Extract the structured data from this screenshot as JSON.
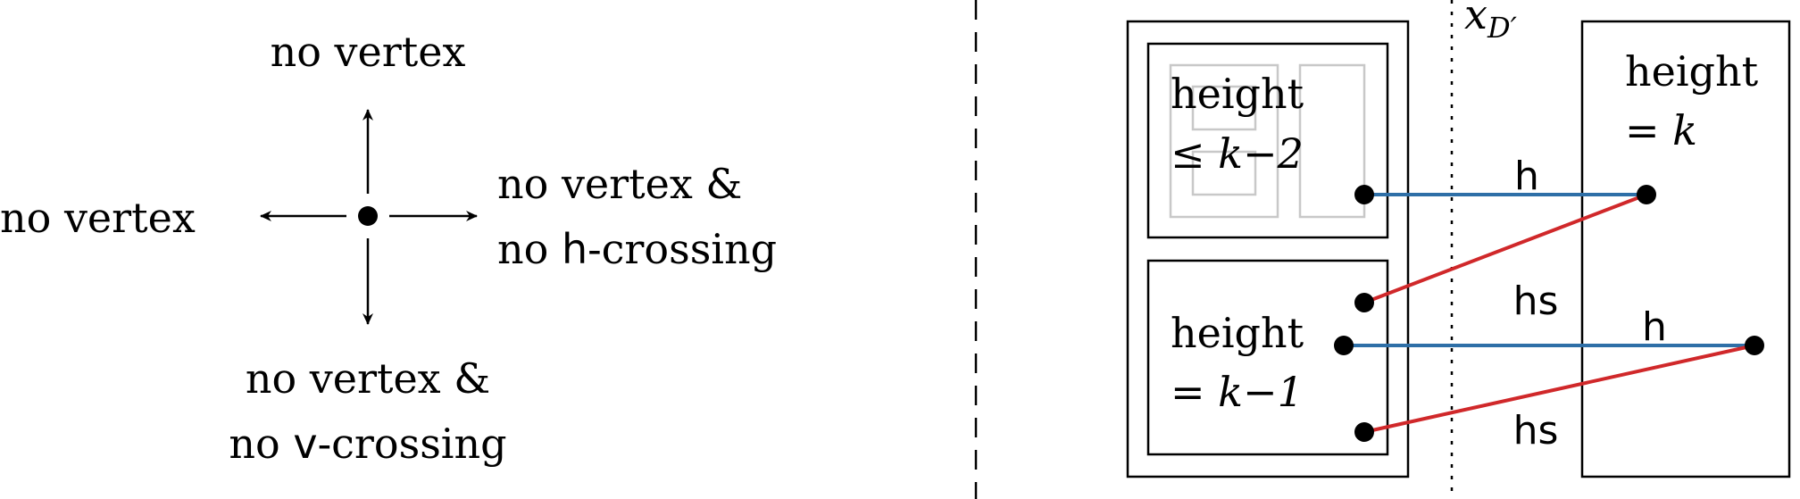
{
  "compass": {
    "up": "no vertex",
    "left": "no vertex",
    "right_line1": "no vertex &",
    "right_line2_prefix": "no ",
    "right_line2_code": "h",
    "right_line2_suffix": "-crossing",
    "down_line1": "no vertex &",
    "down_line2_prefix": "no ",
    "down_line2_code": "v",
    "down_line2_suffix": "-crossing"
  },
  "schematic": {
    "divider_label_base": "x",
    "divider_label_sub": "D′",
    "box_top_line1": "height",
    "box_top_line2": "≤ k−2",
    "box_mid_line1": "height",
    "box_mid_line2": "= k−1",
    "box_right_line1": "height",
    "box_right_line2": "= k",
    "edge_h_top": "h",
    "edge_hs_top": "hs",
    "edge_h_bottom": "h",
    "edge_hs_bottom": "hs"
  },
  "colors": {
    "h_edge": "#2e6fa7",
    "hs_edge": "#d0282a",
    "ghost_box": "#c8c8c8",
    "ink": "#000000"
  }
}
